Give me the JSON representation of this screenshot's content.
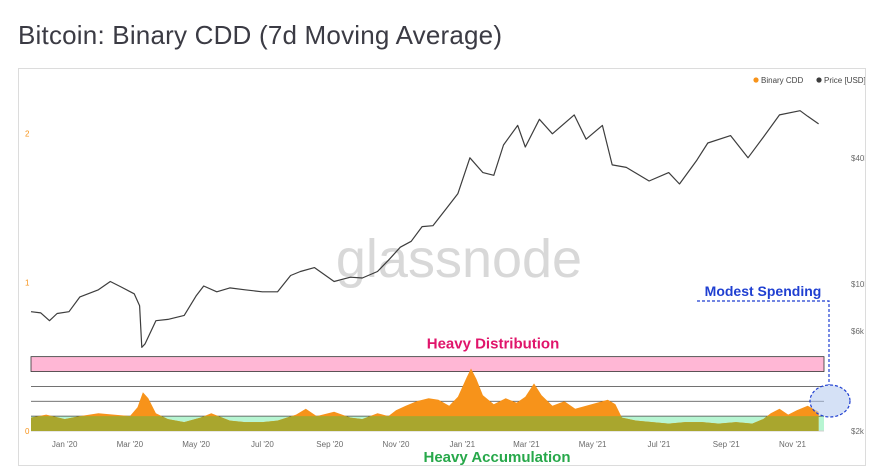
{
  "page": {
    "title": "Bitcoin: Binary CDD (7d Moving Average)"
  },
  "colors": {
    "cdd": "#f7931a",
    "cdd_accumulation": "#a9a62e",
    "price": "#3d3d3d",
    "distribution_band": "#ffb7d5",
    "accumulation_band": "#b7f5d2",
    "distribution_text": "#e0156b",
    "accumulation_text": "#27a84a",
    "modest_text": "#1f3fd1",
    "modest_circle_fill": "#b3c9ee",
    "left_axis": "#f7931a",
    "axis_text": "#6b6b6b"
  },
  "chart_data": {
    "type": "line",
    "title": "Bitcoin: Binary CDD (7d Moving Average)",
    "watermark": "glassnode",
    "legend": {
      "position": "top-right",
      "items": [
        "Binary CDD",
        "Price [USD]"
      ]
    },
    "x_axis": {
      "type": "date",
      "range": [
        "2019-12-01",
        "2021-11-30"
      ],
      "ticks": [
        "Jan '20",
        "Mar '20",
        "May '20",
        "Jul '20",
        "Sep '20",
        "Nov '20",
        "Jan '21",
        "Mar '21",
        "May '21",
        "Jul '21",
        "Sep '21",
        "Nov '21"
      ]
    },
    "y_left": {
      "label": "",
      "range": [
        0,
        2.3
      ],
      "ticks": [
        "0",
        "1",
        "2"
      ]
    },
    "y_right": {
      "label": "",
      "scale": "log",
      "range": [
        2000,
        85000
      ],
      "ticks": [
        "$2k",
        "$6k",
        "$10k",
        "$40k"
      ]
    },
    "annotations": {
      "distribution": "Heavy Distribution",
      "accumulation": "Heavy Accumulation",
      "modest": "Modest Spending"
    },
    "bands": {
      "distribution": [
        0.4,
        0.5
      ],
      "accumulation": [
        0.0,
        0.1
      ],
      "lines": [
        0.2,
        0.3
      ]
    },
    "series": [
      {
        "name": "Binary CDD",
        "type": "area",
        "points": [
          [
            "2019-12-01",
            0.09
          ],
          [
            "2019-12-15",
            0.11
          ],
          [
            "2020-01-01",
            0.08
          ],
          [
            "2020-01-15",
            0.1
          ],
          [
            "2020-02-01",
            0.12
          ],
          [
            "2020-02-15",
            0.11
          ],
          [
            "2020-03-01",
            0.1
          ],
          [
            "2020-03-08",
            0.16
          ],
          [
            "2020-03-13",
            0.26
          ],
          [
            "2020-03-18",
            0.22
          ],
          [
            "2020-03-25",
            0.12
          ],
          [
            "2020-04-05",
            0.08
          ],
          [
            "2020-04-20",
            0.06
          ],
          [
            "2020-05-05",
            0.09
          ],
          [
            "2020-05-15",
            0.12
          ],
          [
            "2020-06-01",
            0.07
          ],
          [
            "2020-06-15",
            0.06
          ],
          [
            "2020-07-01",
            0.06
          ],
          [
            "2020-07-15",
            0.07
          ],
          [
            "2020-08-01",
            0.11
          ],
          [
            "2020-08-10",
            0.15
          ],
          [
            "2020-08-20",
            0.1
          ],
          [
            "2020-09-05",
            0.13
          ],
          [
            "2020-09-20",
            0.09
          ],
          [
            "2020-10-01",
            0.08
          ],
          [
            "2020-10-15",
            0.12
          ],
          [
            "2020-10-25",
            0.1
          ],
          [
            "2020-11-01",
            0.14
          ],
          [
            "2020-11-10",
            0.17
          ],
          [
            "2020-11-20",
            0.2
          ],
          [
            "2020-12-01",
            0.22
          ],
          [
            "2020-12-10",
            0.21
          ],
          [
            "2020-12-20",
            0.17
          ],
          [
            "2020-12-28",
            0.23
          ],
          [
            "2021-01-05",
            0.36
          ],
          [
            "2021-01-09",
            0.42
          ],
          [
            "2021-01-14",
            0.35
          ],
          [
            "2021-01-20",
            0.24
          ],
          [
            "2021-01-30",
            0.18
          ],
          [
            "2021-02-10",
            0.22
          ],
          [
            "2021-02-20",
            0.19
          ],
          [
            "2021-02-28",
            0.23
          ],
          [
            "2021-03-08",
            0.32
          ],
          [
            "2021-03-15",
            0.24
          ],
          [
            "2021-03-25",
            0.17
          ],
          [
            "2021-04-05",
            0.2
          ],
          [
            "2021-04-15",
            0.15
          ],
          [
            "2021-04-25",
            0.17
          ],
          [
            "2021-05-05",
            0.19
          ],
          [
            "2021-05-15",
            0.21
          ],
          [
            "2021-05-22",
            0.18
          ],
          [
            "2021-05-28",
            0.09
          ],
          [
            "2021-06-10",
            0.07
          ],
          [
            "2021-06-25",
            0.06
          ],
          [
            "2021-07-10",
            0.05
          ],
          [
            "2021-07-25",
            0.06
          ],
          [
            "2021-08-10",
            0.06
          ],
          [
            "2021-08-25",
            0.05
          ],
          [
            "2021-09-10",
            0.06
          ],
          [
            "2021-09-25",
            0.05
          ],
          [
            "2021-10-05",
            0.08
          ],
          [
            "2021-10-12",
            0.12
          ],
          [
            "2021-10-20",
            0.15
          ],
          [
            "2021-10-28",
            0.11
          ],
          [
            "2021-11-05",
            0.14
          ],
          [
            "2021-11-15",
            0.17
          ],
          [
            "2021-11-25",
            0.13
          ]
        ]
      },
      {
        "name": "Price [USD]",
        "type": "line",
        "points": [
          [
            "2019-12-01",
            7400
          ],
          [
            "2019-12-10",
            7300
          ],
          [
            "2019-12-18",
            6700
          ],
          [
            "2019-12-25",
            7250
          ],
          [
            "2020-01-05",
            7400
          ],
          [
            "2020-01-15",
            8700
          ],
          [
            "2020-02-01",
            9400
          ],
          [
            "2020-02-12",
            10300
          ],
          [
            "2020-02-22",
            9700
          ],
          [
            "2020-03-05",
            9000
          ],
          [
            "2020-03-10",
            7900
          ],
          [
            "2020-03-12",
            5000
          ],
          [
            "2020-03-15",
            5200
          ],
          [
            "2020-03-25",
            6700
          ],
          [
            "2020-04-05",
            6800
          ],
          [
            "2020-04-20",
            7100
          ],
          [
            "2020-05-01",
            8800
          ],
          [
            "2020-05-08",
            9800
          ],
          [
            "2020-05-20",
            9200
          ],
          [
            "2020-06-01",
            9600
          ],
          [
            "2020-06-15",
            9400
          ],
          [
            "2020-07-01",
            9200
          ],
          [
            "2020-07-15",
            9200
          ],
          [
            "2020-07-27",
            11000
          ],
          [
            "2020-08-05",
            11500
          ],
          [
            "2020-08-18",
            12000
          ],
          [
            "2020-09-05",
            10300
          ],
          [
            "2020-09-20",
            10800
          ],
          [
            "2020-10-01",
            10700
          ],
          [
            "2020-10-15",
            11500
          ],
          [
            "2020-10-25",
            13000
          ],
          [
            "2020-11-05",
            15000
          ],
          [
            "2020-11-15",
            16000
          ],
          [
            "2020-11-25",
            18800
          ],
          [
            "2020-12-05",
            19000
          ],
          [
            "2020-12-17",
            22800
          ],
          [
            "2020-12-28",
            27000
          ],
          [
            "2021-01-08",
            40000
          ],
          [
            "2021-01-20",
            34000
          ],
          [
            "2021-01-30",
            33000
          ],
          [
            "2021-02-08",
            46000
          ],
          [
            "2021-02-21",
            57000
          ],
          [
            "2021-02-28",
            45000
          ],
          [
            "2021-03-13",
            61000
          ],
          [
            "2021-03-25",
            52000
          ],
          [
            "2021-04-14",
            64000
          ],
          [
            "2021-04-25",
            49000
          ],
          [
            "2021-05-10",
            57000
          ],
          [
            "2021-05-19",
            37000
          ],
          [
            "2021-06-01",
            36000
          ],
          [
            "2021-06-22",
            31000
          ],
          [
            "2021-07-10",
            34000
          ],
          [
            "2021-07-20",
            30000
          ],
          [
            "2021-08-05",
            39000
          ],
          [
            "2021-08-15",
            47000
          ],
          [
            "2021-09-05",
            51000
          ],
          [
            "2021-09-21",
            40000
          ],
          [
            "2021-10-05",
            50000
          ],
          [
            "2021-10-20",
            64000
          ],
          [
            "2021-11-08",
            67000
          ],
          [
            "2021-11-15",
            63000
          ],
          [
            "2021-11-25",
            58000
          ]
        ]
      }
    ]
  }
}
